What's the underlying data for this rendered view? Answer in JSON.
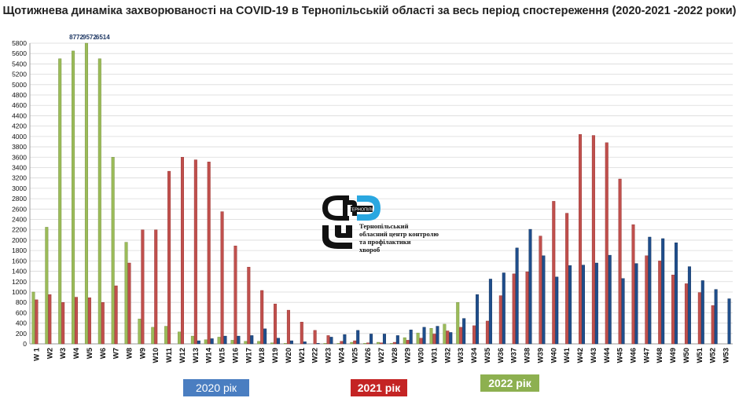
{
  "title": "Щотижнева  динаміка захворюваності на COVID-19 в Тернопільській області за весь період спостереження (2020-2021 -2022 роки)",
  "legend": {
    "y2020": "2020 рік",
    "y2021": "2021 рік",
    "y2022": "2022 рік"
  },
  "logo": {
    "small_text": "ТЕРНОПІЛЬ",
    "lines": [
      "Тернопільський",
      "обласний центр контролю",
      "та профілактики",
      "хвороб"
    ]
  },
  "colors": {
    "y2020": "#1f4e8c",
    "y2021": "#c0504d",
    "y2022": "#9bbb59"
  },
  "chart_data": {
    "type": "bar",
    "title": "Щотижнева  динаміка захворюваності на COVID-19 в Тернопільській області за весь період спостереження (2020-2021 -2022 роки)",
    "ylim": [
      0,
      5800
    ],
    "ytick_step": 200,
    "grid": true,
    "categories": [
      "W 1",
      "W2",
      "W3",
      "W4",
      "W5",
      "W6",
      "W7",
      "W8",
      "W9",
      "W10",
      "W11",
      "W12",
      "W13",
      "W14",
      "W15",
      "W16",
      "W17",
      "W18",
      "W19",
      "W20",
      "W21",
      "W22",
      "W23",
      "W24",
      "W25",
      "W26",
      "W27",
      "W28",
      "W29",
      "W30",
      "W31",
      "W32",
      "W33",
      "W34",
      "W35",
      "W36",
      "W37",
      "W38",
      "W39",
      "W40",
      "W41",
      "W42",
      "W43",
      "W44",
      "W45",
      "W46",
      "W47",
      "W48",
      "W49",
      "W50",
      "W51",
      "W52",
      "W53"
    ],
    "series": [
      {
        "name": "2020 рік",
        "values": [
          null,
          null,
          null,
          null,
          null,
          null,
          null,
          null,
          null,
          null,
          null,
          null,
          60,
          100,
          150,
          150,
          160,
          290,
          110,
          60,
          40,
          10,
          130,
          180,
          260,
          190,
          190,
          160,
          270,
          320,
          340,
          220,
          490,
          950,
          1250,
          1370,
          1850,
          2210,
          1700,
          1290,
          1510,
          1520,
          1560,
          1710,
          1260,
          1550,
          2060,
          2030,
          1950,
          1490,
          1220,
          1050,
          870
        ]
      },
      {
        "name": "2021 рік",
        "values": [
          850,
          950,
          800,
          900,
          890,
          800,
          1120,
          1560,
          2200,
          2200,
          3330,
          3600,
          3550,
          3510,
          2550,
          1890,
          1480,
          1030,
          770,
          650,
          420,
          260,
          160,
          50,
          60,
          20,
          20,
          30,
          70,
          110,
          190,
          250,
          320,
          350,
          440,
          930,
          1350,
          1390,
          2080,
          2750,
          2520,
          4040,
          4020,
          3880,
          3180,
          2300,
          1700,
          1600,
          1330,
          1160,
          990,
          740,
          null
        ]
      },
      {
        "name": "2022 рік",
        "values": [
          1000,
          2250,
          5500,
          5650,
          5800,
          5500,
          3600,
          1960,
          480,
          320,
          340,
          230,
          150,
          80,
          130,
          70,
          50,
          50,
          20,
          10,
          null,
          null,
          10,
          10,
          30,
          10,
          30,
          10,
          120,
          210,
          300,
          380,
          800,
          null,
          null,
          null,
          null,
          null,
          null,
          null,
          null,
          null,
          null,
          null,
          null,
          null,
          null,
          null,
          null,
          null,
          null,
          null,
          null
        ]
      }
    ],
    "annotations": [
      {
        "category": "W4",
        "text": "8772"
      },
      {
        "category": "W5",
        "text": "9572"
      },
      {
        "category": "W6",
        "text": "6514"
      }
    ]
  }
}
